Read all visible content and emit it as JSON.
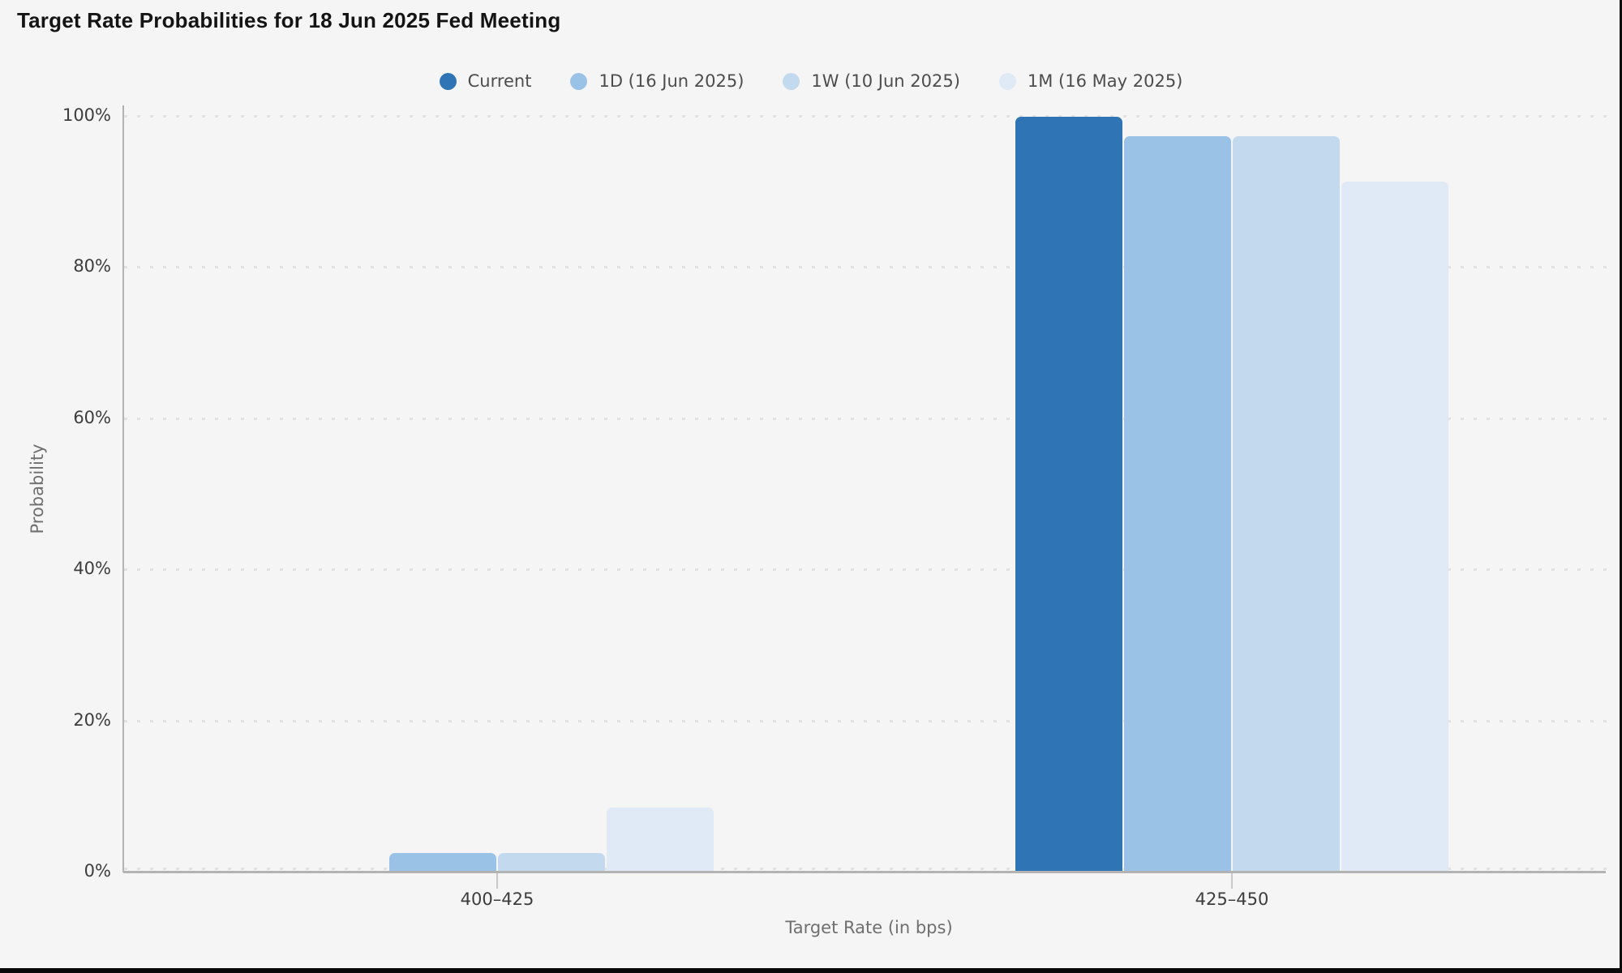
{
  "chart_data": {
    "type": "bar",
    "title": "Target Rate Probabilities for 18 Jun 2025 Fed Meeting",
    "categories": [
      "400–425",
      "425–450"
    ],
    "series": [
      {
        "name": "Current",
        "color": "#2f74b5",
        "values": [
          0.0,
          100.0
        ]
      },
      {
        "name": "1D (16 Jun 2025)",
        "color": "#9ac2e6",
        "values": [
          2.6,
          97.4
        ]
      },
      {
        "name": "1W (10 Jun 2025)",
        "color": "#c2d9ee",
        "values": [
          2.6,
          97.4
        ]
      },
      {
        "name": "1M (16 May 2025)",
        "color": "#dfeaf6",
        "values": [
          8.6,
          91.4
        ]
      }
    ],
    "xlabel": "Target Rate (in bps)",
    "ylabel": "Probability",
    "ylim": [
      0,
      100
    ],
    "yticks": [
      {
        "value": 0,
        "label": "0%"
      },
      {
        "value": 20,
        "label": "20%"
      },
      {
        "value": 40,
        "label": "40%"
      },
      {
        "value": 60,
        "label": "60%"
      },
      {
        "value": 80,
        "label": "80%"
      },
      {
        "value": 100,
        "label": "100%"
      }
    ],
    "grid": "horizontal-dotted",
    "legend_position": "top-center"
  }
}
